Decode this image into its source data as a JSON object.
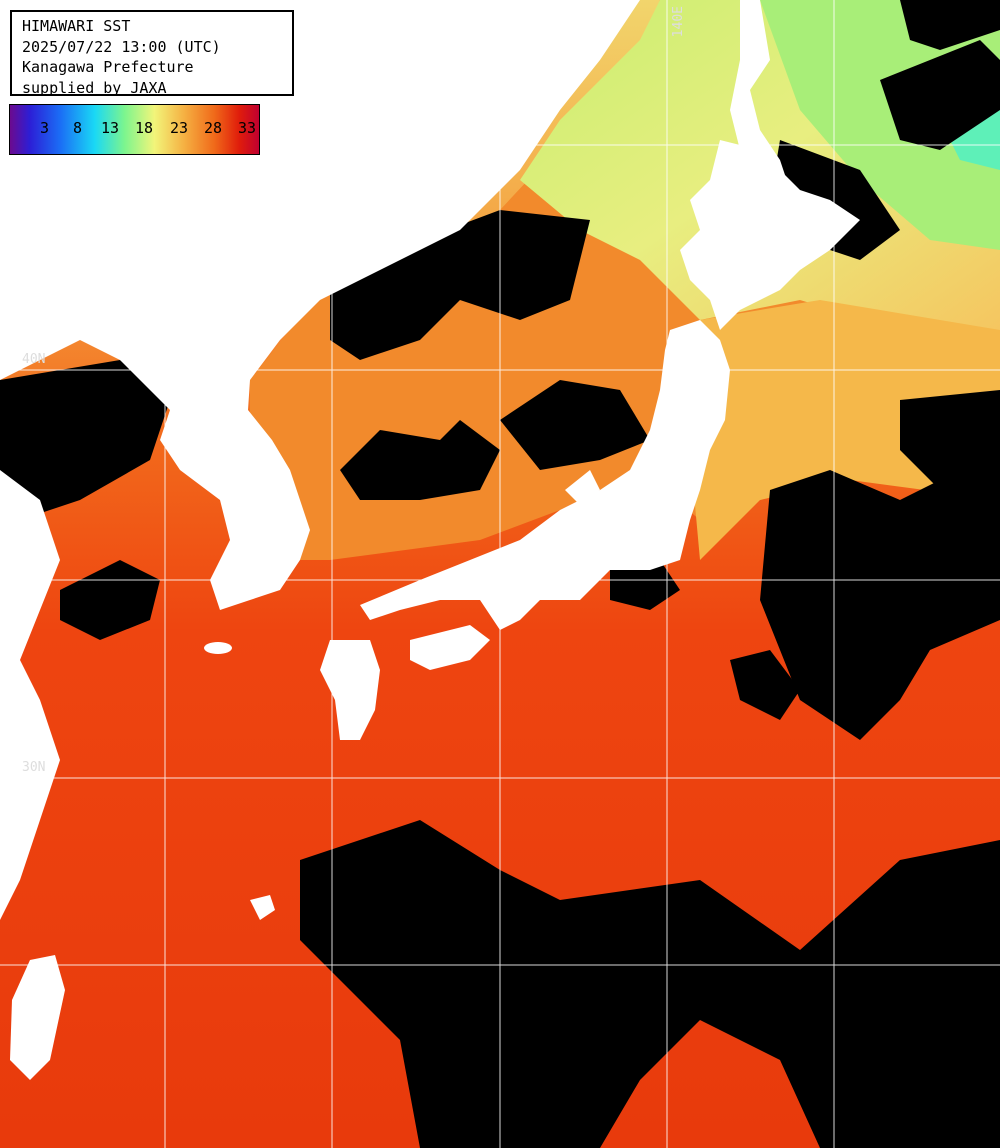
{
  "header": {
    "line1": "HIMAWARI SST",
    "line2": "2025/07/22 13:00 (UTC)",
    "line3": "Kanagawa Prefecture",
    "line4": "supplied by JAXA"
  },
  "legend": {
    "ticks": [
      "3",
      "8",
      "13",
      "18",
      "23",
      "28",
      "33"
    ]
  },
  "gridlabels": {
    "lon140": "140E",
    "lat40": "40N",
    "lat30": "30N"
  },
  "colors": {
    "cloud": "#000000",
    "land": "#ffffff",
    "warm_sea": "#f04a12",
    "hot_sea": "#e23208",
    "mid_sea": "#f5a040",
    "cool_sea": "#c8f080",
    "cold_sea": "#7cf08e",
    "grid": "#ffffff"
  }
}
